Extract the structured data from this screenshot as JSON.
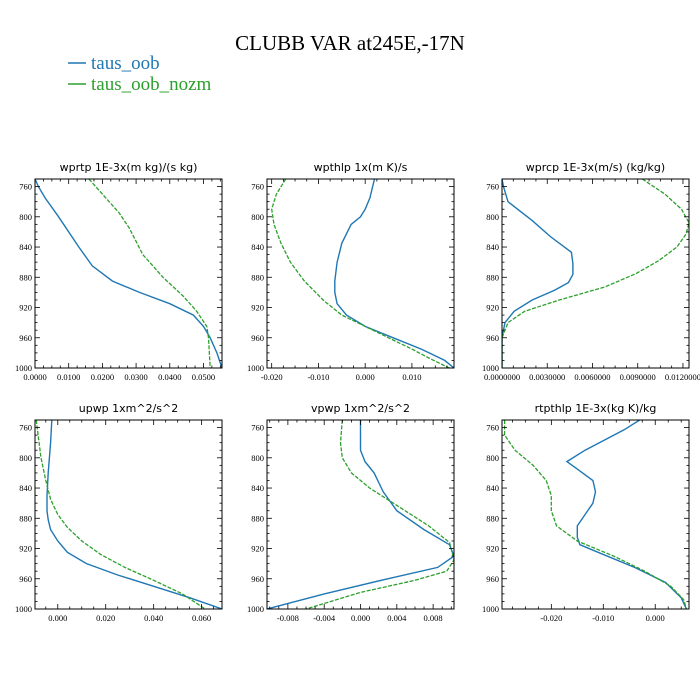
{
  "title": "CLUBB VAR at245E,-17N",
  "legend": [
    {
      "label": "taus_oob",
      "color": "#1f77b4"
    },
    {
      "label": "taus_oob_nozm",
      "color": "#2ca02c"
    }
  ],
  "chart_data": [
    {
      "type": "line",
      "title": "wprtp  1E-3x(m kg)/(s kg)",
      "xlim": [
        0.0,
        0.0555
      ],
      "ylim": [
        1000,
        750
      ],
      "xticks": [
        0.0,
        0.01,
        0.02,
        0.03,
        0.04,
        0.05
      ],
      "xtick_labels": [
        "0.0000",
        "0.0100",
        "0.0200",
        "0.0300",
        "0.0400",
        "0.0500"
      ],
      "yticks": [
        760,
        800,
        840,
        880,
        920,
        960,
        1000
      ],
      "series": [
        {
          "name": "taus_oob",
          "color": "#1f77b4",
          "x": [
            0.0,
            0.001,
            0.003,
            0.007,
            0.013,
            0.017,
            0.023,
            0.031,
            0.04,
            0.047,
            0.05,
            0.052,
            0.054,
            0.0555
          ],
          "y": [
            750,
            760,
            775,
            800,
            840,
            865,
            885,
            900,
            915,
            930,
            945,
            960,
            980,
            1000
          ]
        },
        {
          "name": "taus_oob_nozm",
          "color": "#2ca02c",
          "x": [
            0.016,
            0.02,
            0.025,
            0.028,
            0.032,
            0.038,
            0.044,
            0.048,
            0.051,
            0.0515,
            0.052
          ],
          "y": [
            750,
            770,
            795,
            815,
            850,
            880,
            905,
            925,
            945,
            960,
            1000
          ]
        }
      ]
    },
    {
      "type": "line",
      "title": "wpthlp  1x(m K)/s",
      "xlim": [
        -0.021,
        0.019
      ],
      "ylim": [
        1000,
        750
      ],
      "xticks": [
        -0.02,
        -0.01,
        0.0,
        0.01
      ],
      "xtick_labels": [
        "-0.020",
        "-0.010",
        "0.000",
        "0.010"
      ],
      "yticks": [
        760,
        800,
        840,
        880,
        920,
        960,
        1000
      ],
      "series": [
        {
          "name": "taus_oob",
          "color": "#1f77b4",
          "x": [
            0.002,
            0.001,
            0.0,
            -0.001,
            -0.003,
            -0.005,
            -0.006,
            -0.0065,
            -0.0065,
            -0.006,
            -0.004,
            0.0,
            0.006,
            0.012,
            0.017,
            0.019
          ],
          "y": [
            750,
            775,
            790,
            800,
            810,
            835,
            860,
            885,
            900,
            915,
            930,
            945,
            960,
            975,
            990,
            1000
          ]
        },
        {
          "name": "taus_oob_nozm",
          "color": "#2ca02c",
          "x": [
            -0.017,
            -0.019,
            -0.02,
            -0.0195,
            -0.018,
            -0.016,
            -0.013,
            -0.009,
            -0.005,
            0.0,
            0.005,
            0.01,
            0.014,
            0.018
          ],
          "y": [
            750,
            770,
            790,
            810,
            835,
            860,
            885,
            910,
            930,
            945,
            960,
            975,
            988,
            1000
          ]
        }
      ]
    },
    {
      "type": "line",
      "title": "wprcp  1E-3x(m/s) (kg/kg)",
      "xlim": [
        0.0,
        0.0124
      ],
      "ylim": [
        1000,
        750
      ],
      "xticks": [
        0.0,
        0.003,
        0.006,
        0.009,
        0.012
      ],
      "xtick_labels": [
        "0.0000000",
        "0.0030000",
        "0.0060000",
        "0.0090000",
        "0.0120000"
      ],
      "yticks": [
        760,
        800,
        840,
        880,
        920,
        960,
        1000
      ],
      "series": [
        {
          "name": "taus_oob",
          "color": "#1f77b4",
          "x": [
            0.0,
            0.0001,
            0.0004,
            0.002,
            0.0032,
            0.0046,
            0.0047,
            0.0047,
            0.0044,
            0.0035,
            0.002,
            0.0008,
            0.0002,
            0.0,
            0.0
          ],
          "y": [
            750,
            760,
            780,
            805,
            826,
            847,
            862,
            876,
            887,
            897,
            910,
            925,
            940,
            960,
            1000
          ]
        },
        {
          "name": "taus_oob_nozm",
          "color": "#2ca02c",
          "x": [
            0.0093,
            0.0108,
            0.0119,
            0.0124,
            0.0122,
            0.0116,
            0.0104,
            0.0089,
            0.0068,
            0.0038,
            0.0015,
            0.0004,
            0.0,
            0.0
          ],
          "y": [
            750,
            770,
            790,
            808,
            823,
            840,
            858,
            875,
            893,
            910,
            925,
            940,
            960,
            1000
          ]
        }
      ]
    },
    {
      "type": "line",
      "title": "upwp  1xm^2/s^2",
      "xlim": [
        -0.0095,
        0.0685
      ],
      "ylim": [
        1000,
        750
      ],
      "xticks": [
        0.0,
        0.02,
        0.04,
        0.06
      ],
      "xtick_labels": [
        "0.000",
        "0.020",
        "0.040",
        "0.060"
      ],
      "yticks": [
        760,
        800,
        840,
        880,
        920,
        960,
        1000
      ],
      "series": [
        {
          "name": "taus_oob",
          "color": "#1f77b4",
          "x": [
            -0.0025,
            -0.003,
            -0.004,
            -0.0045,
            -0.0045,
            -0.004,
            -0.003,
            0.0,
            0.004,
            0.012,
            0.025,
            0.04,
            0.055,
            0.0685
          ],
          "y": [
            750,
            780,
            820,
            850,
            870,
            882,
            895,
            910,
            925,
            940,
            955,
            970,
            985,
            1000
          ]
        },
        {
          "name": "taus_oob_nozm",
          "color": "#2ca02c",
          "x": [
            -0.009,
            -0.008,
            -0.007,
            -0.005,
            -0.003,
            0.0,
            0.004,
            0.01,
            0.018,
            0.028,
            0.04,
            0.052,
            0.0615
          ],
          "y": [
            750,
            775,
            800,
            830,
            855,
            875,
            892,
            910,
            928,
            945,
            962,
            980,
            1000
          ]
        }
      ]
    },
    {
      "type": "line",
      "title": "vpwp  1xm^2/s^2",
      "xlim": [
        -0.0103,
        0.0103
      ],
      "ylim": [
        1000,
        750
      ],
      "xticks": [
        -0.008,
        -0.004,
        0.0,
        0.004,
        0.008
      ],
      "xtick_labels": [
        "-0.008",
        "-0.004",
        "0.000",
        "0.004",
        "0.008"
      ],
      "yticks": [
        760,
        800,
        840,
        880,
        920,
        960,
        1000
      ],
      "series": [
        {
          "name": "taus_oob",
          "color": "#1f77b4",
          "x": [
            0.0,
            0.0,
            0.0,
            0.0005,
            0.0015,
            0.0025,
            0.004,
            0.007,
            0.0098,
            0.0103,
            0.0085,
            0.003,
            -0.004,
            -0.0103
          ],
          "y": [
            750,
            770,
            790,
            805,
            820,
            845,
            870,
            895,
            915,
            930,
            945,
            960,
            980,
            1000
          ]
        },
        {
          "name": "taus_oob_nozm",
          "color": "#2ca02c",
          "x": [
            -0.002,
            -0.0022,
            -0.002,
            -0.001,
            0.001,
            0.004,
            0.0075,
            0.0098,
            0.0103,
            0.0095,
            0.006,
            0.0,
            -0.006
          ],
          "y": [
            750,
            780,
            800,
            820,
            840,
            863,
            890,
            912,
            935,
            950,
            962,
            978,
            1000
          ]
        }
      ]
    },
    {
      "type": "line",
      "title": "rtpthlp  1E-3x(kg K)/kg",
      "xlim": [
        -0.0295,
        0.0065
      ],
      "ylim": [
        1000,
        750
      ],
      "xticks": [
        -0.02,
        -0.01,
        0.0
      ],
      "xtick_labels": [
        "-0.020",
        "-0.010",
        "0.000"
      ],
      "yticks": [
        760,
        800,
        840,
        880,
        920,
        960,
        1000
      ],
      "series": [
        {
          "name": "taus_oob",
          "color": "#1f77b4",
          "x": [
            -0.003,
            -0.006,
            -0.0135,
            -0.017,
            -0.015,
            -0.012,
            -0.0115,
            -0.012,
            -0.0135,
            -0.015,
            -0.015,
            -0.0145,
            -0.011,
            -0.004,
            0.002,
            0.005,
            0.006
          ],
          "y": [
            750,
            763,
            790,
            805,
            815,
            830,
            845,
            860,
            875,
            890,
            905,
            915,
            925,
            945,
            965,
            985,
            1000
          ]
        },
        {
          "name": "taus_oob_nozm",
          "color": "#2ca02c",
          "x": [
            -0.029,
            -0.029,
            -0.027,
            -0.0235,
            -0.021,
            -0.02,
            -0.02,
            -0.019,
            -0.015,
            -0.008,
            -0.002,
            0.003,
            0.0055,
            0.006
          ],
          "y": [
            750,
            770,
            790,
            810,
            830,
            850,
            870,
            890,
            910,
            930,
            950,
            970,
            988,
            1000
          ]
        }
      ]
    }
  ]
}
